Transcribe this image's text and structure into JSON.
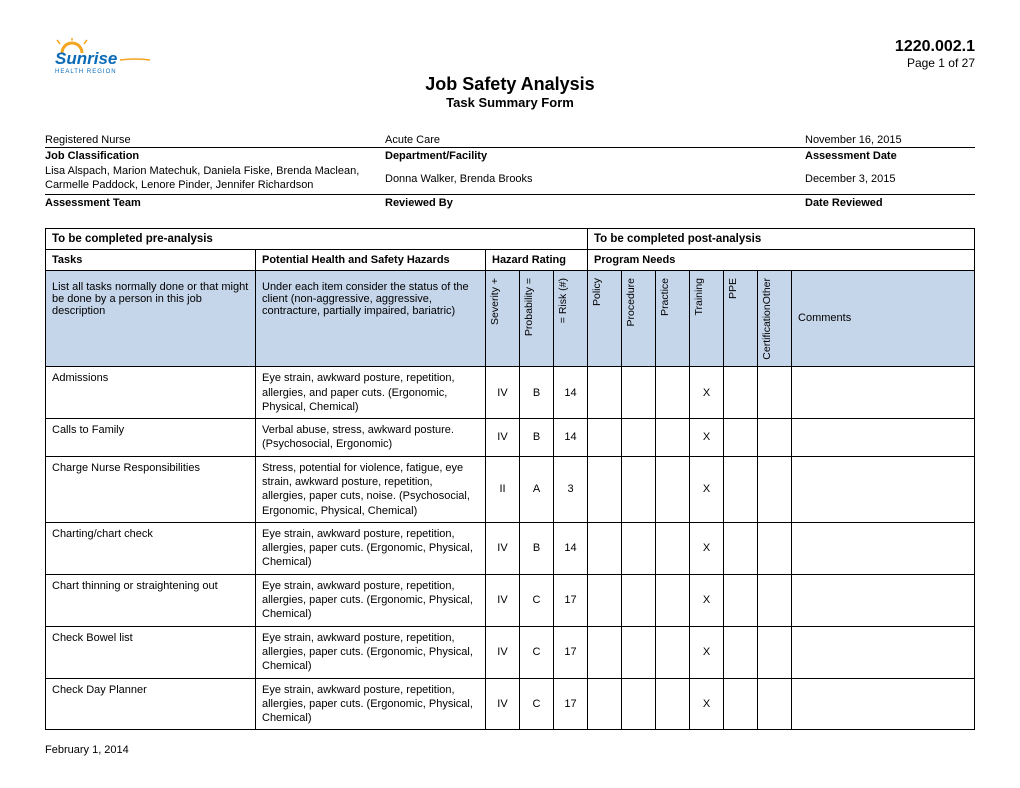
{
  "logo": {
    "brand_top": "Sunrise",
    "brand_bottom": "HEALTH REGION",
    "color_blue": "#0a6ab6",
    "color_orange": "#f4a41e"
  },
  "doc": {
    "number": "1220.002.1",
    "page": "Page 1 of 27"
  },
  "title": {
    "main": "Job Safety Analysis",
    "sub": "Task Summary Form"
  },
  "meta": {
    "classification": {
      "label": "Job Classification",
      "value": "Registered Nurse"
    },
    "department": {
      "label": "Department/Facility",
      "value": "Acute Care"
    },
    "assess_date": {
      "label": "Assessment Date",
      "value": "November 16, 2015"
    },
    "team": {
      "label": "Assessment Team",
      "value": "Lisa Alspach, Marion Matechuk, Daniela Fiske, Brenda Maclean, Carmelle Paddock, Lenore Pinder, Jennifer Richardson"
    },
    "reviewed_by": {
      "label": "Reviewed By",
      "value": "Donna Walker, Brenda Brooks"
    },
    "date_reviewed": {
      "label": "Date Reviewed",
      "value": "December 3, 2015"
    }
  },
  "table": {
    "pre_header": "To be completed pre-analysis",
    "post_header": "To be completed post-analysis",
    "col_tasks": "Tasks",
    "col_hazards": "Potential Health and Safety Hazards",
    "col_rating": "Hazard Rating",
    "col_needs": "Program Needs",
    "desc_tasks": "List all tasks normally done or that might be done by a person in this job description",
    "desc_haz": "Under each item consider the status of the client (non-aggressive, aggressive, contracture, partially impaired, bariatric)",
    "rot1": "Severity  +",
    "rot2": "Probability  =",
    "rot3": "= Risk (#)",
    "rot4": "Policy",
    "rot5": "Procedure",
    "rot6": "Practice",
    "rot7": "Training",
    "rot8": "PPE",
    "rot9": "CertificationOther",
    "col_comments": "Comments"
  },
  "rows": [
    {
      "task": "Admissions",
      "hazard": "Eye strain, awkward posture, repetition, allergies, and paper cuts.  (Ergonomic, Physical, Chemical)",
      "sev": "IV",
      "prob": "B",
      "risk": "14",
      "training": "X"
    },
    {
      "task": "Calls to Family",
      "hazard": "Verbal abuse, stress, awkward posture.  (Psychosocial, Ergonomic)",
      "sev": "IV",
      "prob": "B",
      "risk": "14",
      "training": "X"
    },
    {
      "task": "Charge Nurse Responsibilities",
      "hazard": "Stress, potential for violence, fatigue, eye strain, awkward posture, repetition, allergies, paper cuts, noise.  (Psychosocial, Ergonomic, Physical, Chemical)",
      "sev": "II",
      "prob": "A",
      "risk": "3",
      "training": "X"
    },
    {
      "task": "Charting/chart check",
      "hazard": "Eye strain, awkward posture, repetition, allergies, paper cuts.  (Ergonomic, Physical, Chemical)",
      "sev": "IV",
      "prob": "B",
      "risk": "14",
      "training": "X"
    },
    {
      "task": "Chart thinning or straightening out",
      "hazard": "Eye strain, awkward posture, repetition, allergies, paper cuts.  (Ergonomic, Physical, Chemical)",
      "sev": "IV",
      "prob": "C",
      "risk": "17",
      "training": "X"
    },
    {
      "task": "Check Bowel list",
      "hazard": "Eye strain, awkward posture, repetition, allergies, paper cuts.   (Ergonomic, Physical, Chemical)",
      "sev": "IV",
      "prob": "C",
      "risk": "17",
      "training": "X"
    },
    {
      "task": "Check Day Planner",
      "hazard": "Eye strain, awkward posture, repetition, allergies, paper cuts.  (Ergonomic, Physical, Chemical)",
      "sev": "IV",
      "prob": "C",
      "risk": "17",
      "training": "X"
    }
  ],
  "footer_date": "February 1, 2014"
}
